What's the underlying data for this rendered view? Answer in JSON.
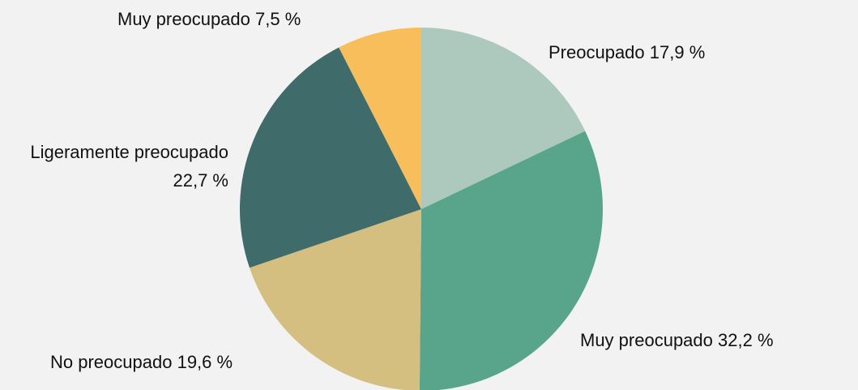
{
  "chart_data": {
    "type": "pie",
    "categories": [
      "Preocupado",
      "Muy preocupado",
      "No preocupado",
      "Ligeramente preocupado",
      "Muy preocupado"
    ],
    "values": [
      17.9,
      32.2,
      19.6,
      22.7,
      7.5
    ],
    "value_labels": [
      "17,9 %",
      "32,2 %",
      "19,6 %",
      "22,7 %",
      "7,5 %"
    ],
    "colors": [
      "#adc8bd",
      "#58a58c",
      "#d4be80",
      "#3f6b6a",
      "#f8be5b"
    ]
  }
}
